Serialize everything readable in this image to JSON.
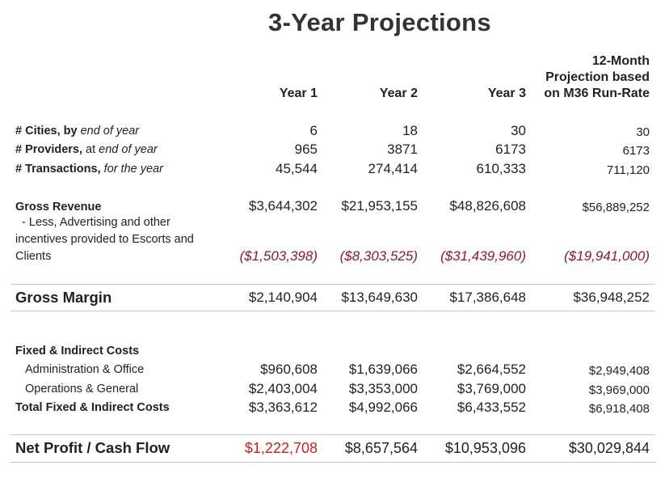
{
  "title": "3-Year Projections",
  "columns": {
    "y1": "Year 1",
    "y2": "Year 2",
    "y3": "Year 3",
    "proj_line1": "12-Month",
    "proj_line2": "Projection based",
    "proj_line3": "on M36 Run-Rate"
  },
  "metrics": {
    "cities": {
      "label_bold": "# Cities, by",
      "label_italic": " end of year",
      "values": [
        "6",
        "18",
        "30",
        "30"
      ]
    },
    "providers": {
      "label_bold": "# Providers,",
      "label_plain": " at",
      "label_italic": " end of year",
      "values": [
        "965",
        "3871",
        "6173",
        "6173"
      ]
    },
    "transactions": {
      "label_bold": "# Transactions,",
      "label_italic": " for the year",
      "values": [
        "45,544",
        "274,414",
        "610,333",
        "711,120"
      ]
    }
  },
  "revenue": {
    "gross_label": "Gross Revenue",
    "gross_values": [
      "$3,644,302",
      "$21,953,155",
      "$48,826,608",
      "$56,889,252"
    ],
    "less_line1": "  - Less, Advertising and other",
    "less_line2": "incentives provided to Escorts and",
    "less_line3": "Clients",
    "less_values": [
      "($1,503,398)",
      "($8,303,525)",
      "($31,439,960)",
      "($19,941,000)"
    ]
  },
  "gross_margin": {
    "label": "Gross Margin",
    "values": [
      "$2,140,904",
      "$13,649,630",
      "$17,386,648",
      "$36,948,252"
    ]
  },
  "costs": {
    "header": "Fixed & Indirect Costs",
    "admin_label": "Administration & Office",
    "admin_values": [
      "$960,608",
      "$1,639,066",
      "$2,664,552",
      "$2,949,408"
    ],
    "ops_label": "Operations & General",
    "ops_values": [
      "$2,403,004",
      "$3,353,000",
      "$3,769,000",
      "$3,969,000"
    ],
    "total_label": "Total Fixed & Indirect Costs",
    "total_values": [
      "$3,363,612",
      "$4,992,066",
      "$6,433,552",
      "$6,918,408"
    ]
  },
  "net_profit": {
    "label": "Net Profit / Cash Flow",
    "values": [
      "$1,222,708",
      "$8,657,564",
      "$10,953,096",
      "$30,029,844"
    ]
  },
  "colors": {
    "negative": "#8b1a2c",
    "highlight_red": "#d01f1f",
    "rule": "#c8c8c8"
  }
}
